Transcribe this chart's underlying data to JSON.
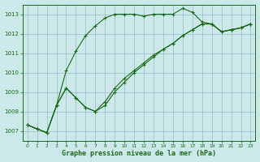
{
  "title": "Graphe pression niveau de la mer (hPa)",
  "bg_color": "#cce8e8",
  "grid_color": "#99bbcc",
  "line_color": "#1a6b1a",
  "xlim": [
    -0.5,
    23.5
  ],
  "ylim": [
    1006.5,
    1013.5
  ],
  "yticks": [
    1007,
    1008,
    1009,
    1010,
    1011,
    1012,
    1013
  ],
  "xticks": [
    0,
    1,
    2,
    3,
    4,
    5,
    6,
    7,
    8,
    9,
    10,
    11,
    12,
    13,
    14,
    15,
    16,
    17,
    18,
    19,
    20,
    21,
    22,
    23
  ],
  "xlabels": [
    "0",
    "1",
    "2",
    "3",
    "4",
    "5",
    "6",
    "7",
    "8",
    "9",
    "10",
    "11",
    "12",
    "13",
    "14",
    "15",
    "16",
    "17",
    "18",
    "19",
    "20",
    "21",
    "22",
    "23"
  ],
  "series": [
    [
      1007.3,
      1007.1,
      1006.9,
      1008.3,
      1010.1,
      1011.1,
      1011.9,
      1012.4,
      1012.8,
      1013.0,
      1013.0,
      1013.0,
      1012.9,
      1013.0,
      1013.0,
      1013.0,
      1013.3,
      1013.1,
      1012.6,
      1012.5,
      1012.1,
      1012.2,
      1012.3,
      1012.5
    ],
    [
      1007.3,
      1007.1,
      1006.9,
      1008.3,
      1009.2,
      1008.7,
      1008.2,
      1008.0,
      1008.3,
      1009.0,
      1009.5,
      1010.0,
      1010.4,
      1010.8,
      1011.2,
      1011.5,
      1011.9,
      1012.2,
      1012.5,
      1012.5,
      1012.1,
      1012.2,
      1012.3,
      1012.5
    ],
    [
      1007.3,
      1007.1,
      1006.9,
      1008.3,
      1009.2,
      1008.7,
      1008.2,
      1008.0,
      1008.5,
      1009.2,
      1009.7,
      1010.1,
      1010.5,
      1010.9,
      1011.2,
      1011.5,
      1011.9,
      1012.2,
      1012.5,
      1012.5,
      1012.1,
      1012.2,
      1012.3,
      1012.5
    ]
  ]
}
